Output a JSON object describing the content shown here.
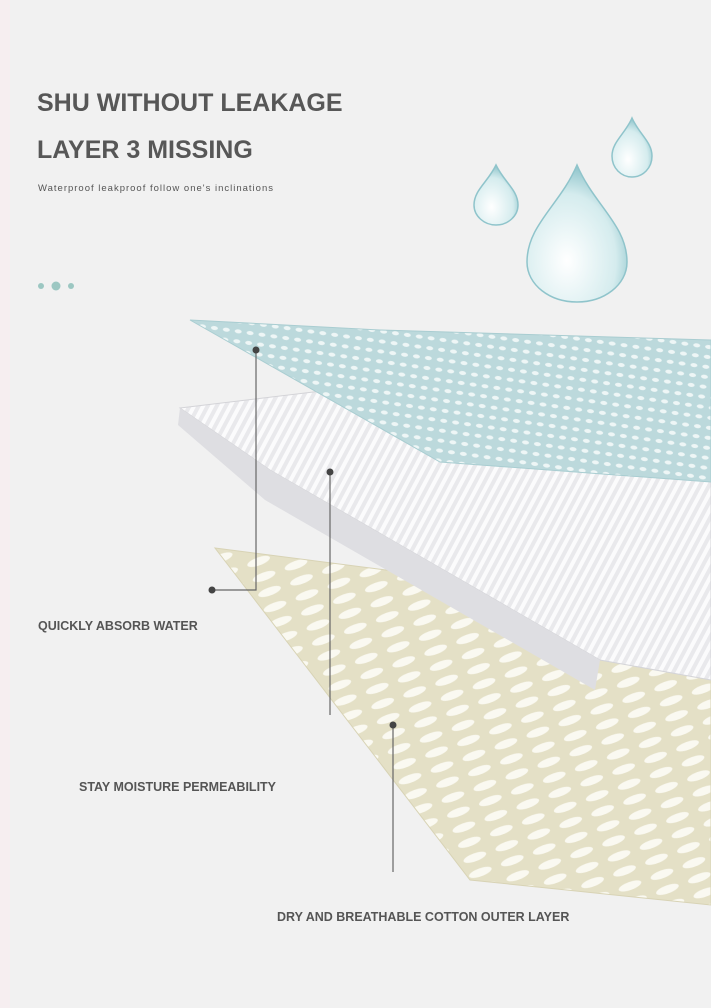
{
  "header": {
    "title_line1": "SHU WITHOUT LEAKAGE",
    "title_line2": "LAYER 3 MISSING",
    "subtitle": "Waterproof leakproof follow one's inclinations"
  },
  "labels": [
    "QUICKLY ABSORB WATER",
    "STAY MOISTURE PERMEABILITY",
    "DRY AND BREATHABLE COTTON OUTER LAYER"
  ]
}
